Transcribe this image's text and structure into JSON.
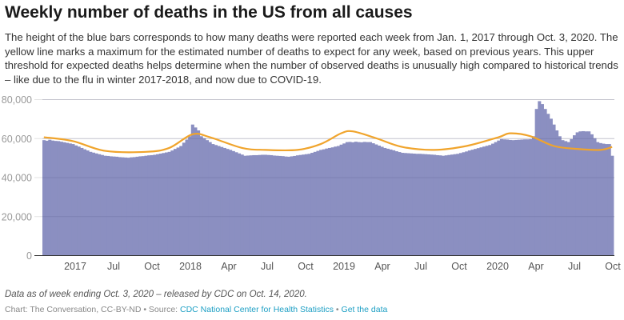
{
  "title": "Weekly number of deaths in the US from all causes",
  "description": "The height of the blue bars corresponds to how many deaths were reported each week from Jan. 1, 2017 through Oct. 3, 2020. The yellow line marks a maximum for the estimated number of deaths to expect for any week, based on previous years. This upper threshold for expected deaths helps determine when the number of observed deaths is unusually high compared to historical trends – like due to the flu in winter 2017-2018, and now due to COVID-19.",
  "note": "Data as of week ending Oct. 3, 2020 – released by CDC on Oct. 14, 2020.",
  "credits": {
    "prefix": "Chart: The Conversation, CC-BY-ND • Source: ",
    "source_link": "CDC National Center for Health Statistics",
    "separator": " • ",
    "data_link": "Get the data"
  },
  "colors": {
    "bars": "#8b8fc1",
    "threshold_line": "#f0a42c",
    "grid": "#e3e3e3",
    "link": "#1d9fc4"
  },
  "chart_data": {
    "type": "bar",
    "ylim": [
      0,
      80000
    ],
    "yticks": [
      0,
      20000,
      40000,
      60000,
      80000
    ],
    "ytick_labels": [
      "0",
      "20,000",
      "40,000",
      "60,000",
      "80,000"
    ],
    "xtick_labels": [
      "2017",
      "Jul",
      "Oct",
      "2018",
      "Apr",
      "Jul",
      "Oct",
      "2019",
      "Apr",
      "Jul",
      "Oct",
      "2020",
      "Apr",
      "Jul",
      "Oct"
    ],
    "grid": true,
    "x_start": "2017-01-07",
    "x_end": "2020-10-03",
    "interval": "week",
    "series": [
      {
        "type": "bar",
        "values": [
          59000,
          58700,
          59200,
          58800,
          58600,
          58500,
          58200,
          57900,
          57600,
          57300,
          57000,
          56300,
          55700,
          55000,
          54300,
          53700,
          53000,
          52600,
          52200,
          51800,
          51400,
          51000,
          50900,
          50700,
          50600,
          50500,
          50300,
          50200,
          50100,
          50000,
          50200,
          50300,
          50500,
          50700,
          50800,
          51000,
          51200,
          51300,
          51500,
          51800,
          52100,
          52400,
          52700,
          53000,
          53700,
          54500,
          55200,
          56000,
          57700,
          59300,
          61000,
          67000,
          65500,
          64000,
          61000,
          60000,
          59000,
          58000,
          57000,
          56500,
          56000,
          55500,
          55000,
          54500,
          54000,
          53400,
          52800,
          52200,
          51600,
          51000,
          51100,
          51200,
          51300,
          51300,
          51400,
          51500,
          51500,
          51400,
          51300,
          51100,
          51000,
          50900,
          50800,
          50600,
          50500,
          50700,
          50900,
          51200,
          51400,
          51600,
          51800,
          52000,
          52500,
          53000,
          53500,
          54000,
          54300,
          54700,
          55000,
          55300,
          55700,
          56000,
          56700,
          57300,
          58000,
          58100,
          57900,
          58200,
          58000,
          57900,
          58100,
          58000,
          58000,
          57400,
          56800,
          56200,
          55600,
          55000,
          54600,
          54200,
          53800,
          53300,
          52900,
          52500,
          52400,
          52300,
          52200,
          52100,
          52000,
          52000,
          51900,
          51800,
          51700,
          51600,
          51500,
          51300,
          51200,
          51000,
          51200,
          51400,
          51600,
          51800,
          52000,
          52400,
          52800,
          53200,
          53700,
          54100,
          54500,
          54900,
          55300,
          55700,
          56100,
          56500,
          57200,
          58000,
          58800,
          59500,
          59400,
          59300,
          59100,
          59000,
          59100,
          59200,
          59300,
          59400,
          59400,
          59500,
          61000,
          75000,
          79000,
          77500,
          75000,
          72500,
          70000,
          67000,
          64000,
          61000,
          59000,
          58500,
          58000,
          59500,
          61500,
          63000,
          63500,
          63600,
          63500,
          63500,
          62000,
          60000,
          58000,
          57500,
          57200,
          57000,
          57000,
          51000
        ]
      },
      {
        "type": "line",
        "points": [
          {
            "date": "2017-01-07",
            "value": 60500
          },
          {
            "date": "2017-03-18",
            "value": 58500
          },
          {
            "date": "2017-06-03",
            "value": 53500
          },
          {
            "date": "2017-09-09",
            "value": 53000
          },
          {
            "date": "2017-11-04",
            "value": 55000
          },
          {
            "date": "2017-12-30",
            "value": 62000
          },
          {
            "date": "2018-02-10",
            "value": 60500
          },
          {
            "date": "2018-04-28",
            "value": 55000
          },
          {
            "date": "2018-06-23",
            "value": 54000
          },
          {
            "date": "2018-09-08",
            "value": 54000
          },
          {
            "date": "2018-11-03",
            "value": 57000
          },
          {
            "date": "2018-12-22",
            "value": 62500
          },
          {
            "date": "2019-01-19",
            "value": 63500
          },
          {
            "date": "2019-03-16",
            "value": 60000
          },
          {
            "date": "2019-05-18",
            "value": 55500
          },
          {
            "date": "2019-08-03",
            "value": 54000
          },
          {
            "date": "2019-10-19",
            "value": 56000
          },
          {
            "date": "2020-01-04",
            "value": 60500
          },
          {
            "date": "2020-02-01",
            "value": 62500
          },
          {
            "date": "2020-03-21",
            "value": 61000
          },
          {
            "date": "2020-05-16",
            "value": 56000
          },
          {
            "date": "2020-07-11",
            "value": 54500
          },
          {
            "date": "2020-09-05",
            "value": 54000
          },
          {
            "date": "2020-10-03",
            "value": 55500
          }
        ]
      }
    ]
  }
}
